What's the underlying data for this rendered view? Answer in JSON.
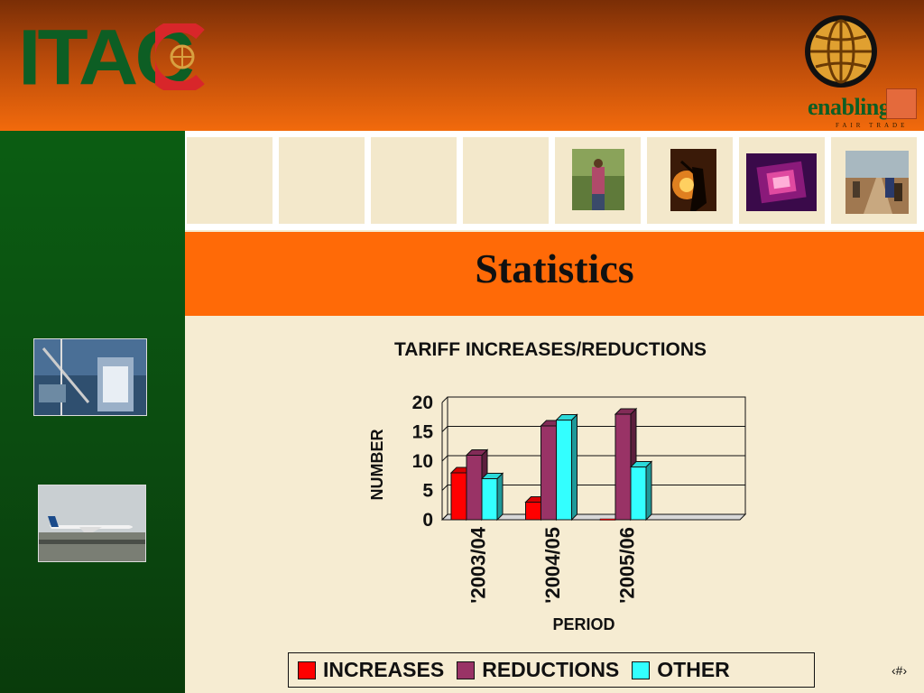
{
  "header": {
    "logo_text": "ITAC",
    "tagline_main": "enabling",
    "tagline_sub": "FAIR TRADE"
  },
  "slide": {
    "title": "Statistics",
    "page_number": "‹#›"
  },
  "colors": {
    "increases": "#ff0000",
    "reductions": "#993366",
    "other": "#33ffff",
    "brand_orange": "#ff6a07",
    "brand_green": "#0b5d12"
  },
  "chart_data": {
    "type": "bar",
    "title": "TARIFF INCREASES/REDUCTIONS",
    "xlabel": "PERIOD",
    "ylabel": "NUMBER",
    "categories": [
      "'2003/04",
      "'2004/05",
      "'2005/06",
      ""
    ],
    "series": [
      {
        "name": "INCREASES",
        "values": [
          8,
          3,
          0,
          0
        ]
      },
      {
        "name": "REDUCTIONS",
        "values": [
          11,
          16,
          18,
          0
        ]
      },
      {
        "name": "OTHER",
        "values": [
          7,
          17,
          9,
          0
        ]
      }
    ],
    "ylim": [
      0,
      20
    ],
    "yticks": [
      0,
      5,
      10,
      15,
      20
    ],
    "grid": true,
    "legend": "bottom",
    "style": "3d"
  }
}
